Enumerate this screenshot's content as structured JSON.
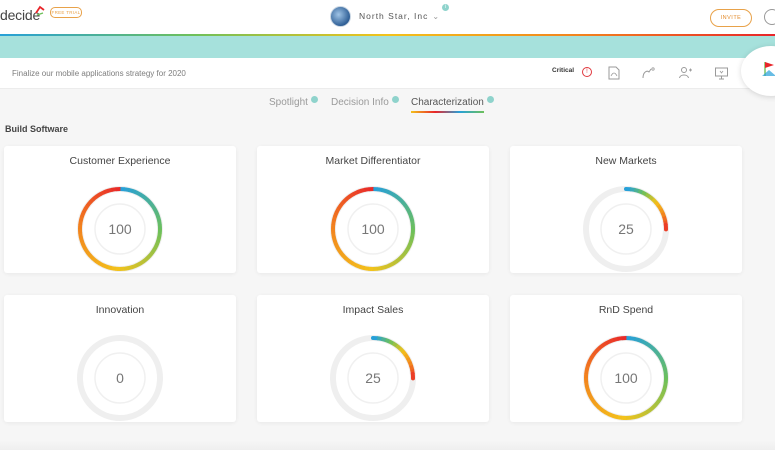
{
  "app": {
    "logo_text": "decide",
    "trial_badge": "FREE TRIAL",
    "org_name": "North Star, Inc",
    "invite_label": "INVITE"
  },
  "decision": {
    "title": "Finalize our mobile applications strategy for 2020",
    "priority": "Critical"
  },
  "tabs": [
    {
      "label": "Spotlight",
      "active": false
    },
    {
      "label": "Decision Info",
      "active": false
    },
    {
      "label": "Characterization",
      "active": true
    }
  ],
  "section": "Build Software",
  "cards": [
    {
      "title": "Customer Experience",
      "value": 100
    },
    {
      "title": "Market Differentiator",
      "value": 100
    },
    {
      "title": "New Markets",
      "value": 25
    },
    {
      "title": "Innovation",
      "value": 0
    },
    {
      "title": "Impact Sales",
      "value": 25
    },
    {
      "title": "RnD Spend",
      "value": 100
    }
  ],
  "colors": {
    "gradient": [
      "#27a0d8",
      "#6ec05a",
      "#f3c21b",
      "#f2821e",
      "#e8252a"
    ],
    "teal_band": "#a6e1dc",
    "accent_orange": "#e8a24a"
  },
  "icons": [
    "critical-icon",
    "pdf-icon",
    "assign-icon",
    "add-user-icon",
    "present-icon",
    "flag-icon",
    "chat-icon"
  ]
}
